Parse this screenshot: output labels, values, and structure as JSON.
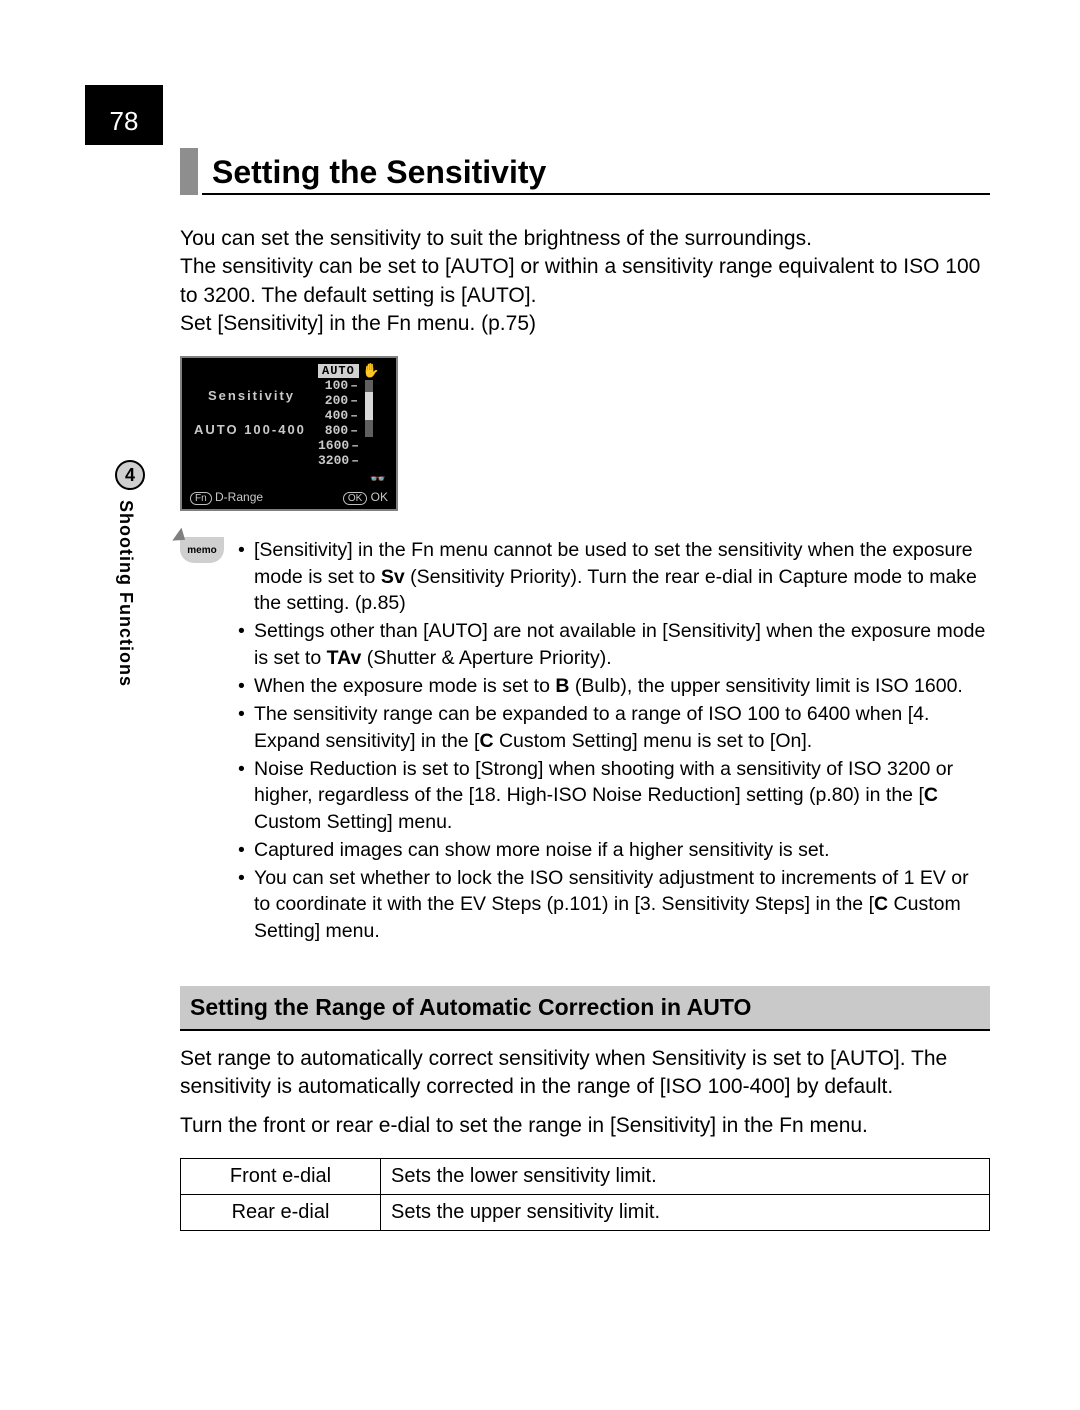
{
  "page_number": "78",
  "chapter_tab": {
    "number": "4",
    "label": "Shooting Functions"
  },
  "title": "Setting the Sensitivity",
  "intro_lines": [
    "You can set the sensitivity to suit the brightness of the surroundings.",
    "The sensitivity can be set to [AUTO] or within a sensitivity range equivalent to ISO 100 to 3200. The default setting is [AUTO].",
    "Set [Sensitivity] in the Fn menu. (p.75)"
  ],
  "camera_screen": {
    "auto_badge": "AUTO",
    "label": "Sensitivity",
    "range_text": "AUTO 100-400",
    "values": [
      "100",
      "200",
      "400",
      "800",
      "1600",
      "3200"
    ],
    "fn_label": "Fn",
    "drange": "D-Range",
    "ok_oval": "OK",
    "ok_text": "OK"
  },
  "memo_label": "memo",
  "memo_items": [
    {
      "pre": "[Sensitivity] in the Fn menu cannot be used to set the sensitivity when the exposure mode is set to ",
      "bold": "Sv",
      "post": " (Sensitivity Priority). Turn the rear e-dial in Capture mode to make the setting. (p.85)"
    },
    {
      "pre": "Settings other than [AUTO] are not available in [Sensitivity] when the exposure mode is set to ",
      "bold": "TAv",
      "post": " (Shutter & Aperture Priority)."
    },
    {
      "pre": "When the exposure mode is set to ",
      "bold": "B",
      "post": " (Bulb), the upper sensitivity limit is ISO 1600."
    },
    {
      "pre": "The sensitivity range can be expanded to a range of ISO 100 to 6400 when [4. Expand sensitivity] in the [",
      "bold": "C",
      "post": " Custom Setting] menu is set to [On]."
    },
    {
      "pre": "Noise Reduction is set to [Strong] when shooting with a sensitivity of ISO 3200 or higher, regardless of the [18. High-ISO Noise Reduction] setting (p.80) in the [",
      "bold": "C",
      "post": " Custom Setting] menu."
    },
    {
      "pre": "Captured images can show more noise if a higher sensitivity is set.",
      "bold": "",
      "post": ""
    },
    {
      "pre": "You can set whether to lock the ISO sensitivity adjustment to increments of 1 EV or to coordinate it with the EV Steps (p.101) in [3. Sensitivity Steps] in the [",
      "bold": "C",
      "post": " Custom Setting] menu."
    }
  ],
  "sub_title": "Setting the Range of Automatic Correction in AUTO",
  "sub_body": [
    "Set range to automatically correct sensitivity when Sensitivity is set to [AUTO]. The sensitivity is automatically corrected in the range of [ISO 100-400] by default.",
    "Turn the front or rear e-dial to set the range in [Sensitivity] in the Fn menu."
  ],
  "dial_table": [
    {
      "dial": "Front e-dial",
      "desc": "Sets the lower sensitivity limit."
    },
    {
      "dial": "Rear e-dial",
      "desc": "Sets the upper sensitivity limit."
    }
  ]
}
